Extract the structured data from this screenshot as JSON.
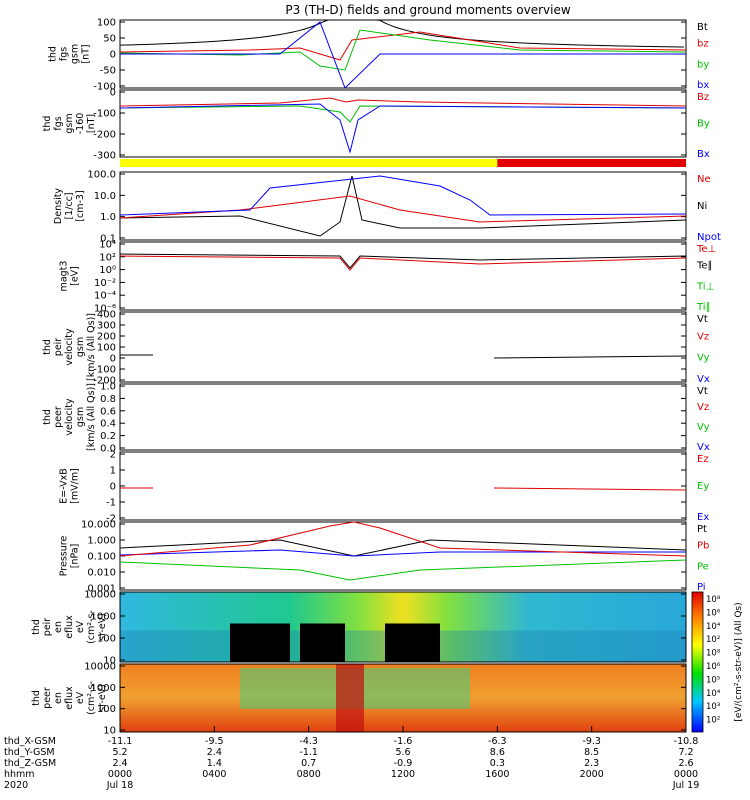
{
  "title": "P3 (TH-D) fields and ground moments overview",
  "colors": {
    "black": "#000000",
    "red": "#e00000",
    "green": "#00c000",
    "blue": "#0000ff",
    "yellow": "#ffff00"
  },
  "chart_data": {
    "type": "line",
    "title": "P3 (TH-D) fields and ground moments overview",
    "x_axis": {
      "label": "hhmm",
      "year": "2020",
      "start_date": "Jul 18",
      "end_date": "Jul 19",
      "ticks": [
        "0000",
        "0400",
        "0800",
        "1200",
        "1600",
        "2000",
        "0000"
      ],
      "rows": [
        {
          "label": "thd_X-GSM",
          "values": [
            "-11.1",
            "-9.5",
            "-4.3",
            "-1.6",
            "-6.3",
            "-9.3",
            "-10.8"
          ]
        },
        {
          "label": "thd_Y-GSM",
          "values": [
            "5.2",
            "2.4",
            "-1.1",
            "5.6",
            "8.6",
            "8.5",
            "7.2"
          ]
        },
        {
          "label": "thd_Z-GSM",
          "values": [
            "2.4",
            "1.4",
            "0.7",
            "-0.9",
            "0.3",
            "2.3",
            "2.6"
          ]
        }
      ]
    },
    "quality_bar": [
      {
        "color": "yellow",
        "start": "0000",
        "end": "1600"
      },
      {
        "color": "red",
        "start": "1600",
        "end": "2400"
      }
    ],
    "panels": [
      {
        "id": "fgs",
        "ylabel": [
          "thd",
          "fgs",
          "gsm",
          "[nT]"
        ],
        "yticks": [
          "100",
          "50",
          "0",
          "-50",
          "-100"
        ],
        "legend": [
          {
            "t": "Bt",
            "c": "black"
          },
          {
            "t": "bz",
            "c": "red"
          },
          {
            "t": "by",
            "c": "green"
          },
          {
            "t": "bx",
            "c": "blue"
          }
        ]
      },
      {
        "id": "fgs_dc",
        "ylabel": [
          "thd",
          "fgs",
          "gsm",
          "-160",
          "[nT]"
        ],
        "yticks": [
          "0",
          "-100",
          "-200",
          "-300"
        ],
        "legend": [
          {
            "t": "Bz",
            "c": "red"
          },
          {
            "t": "By",
            "c": "green"
          },
          {
            "t": "Bx",
            "c": "blue"
          }
        ]
      },
      {
        "id": "density",
        "ylabel": [
          "Density",
          "[1/cc]",
          "[cm-3]"
        ],
        "yticks": [
          "100.0",
          "10.0",
          "1.0",
          "0.1"
        ],
        "legend": [
          {
            "t": "Ne",
            "c": "red"
          },
          {
            "t": "Ni",
            "c": "black"
          },
          {
            "t": "Npot",
            "c": "blue"
          }
        ]
      },
      {
        "id": "temp",
        "ylabel": [
          "magt3",
          "[eV]"
        ],
        "yticks": [
          "10⁴",
          "10²",
          "10⁰",
          "10⁻²",
          "10⁻⁴",
          "10⁻⁶"
        ],
        "legend": [
          {
            "t": "Te⊥",
            "c": "red"
          },
          {
            "t": "Te∥",
            "c": "black"
          },
          {
            "t": "Ti⊥",
            "c": "green"
          },
          {
            "t": "Ti∥",
            "c": "green"
          }
        ]
      },
      {
        "id": "vi",
        "ylabel": [
          "thd",
          "peir",
          "velocity",
          "gsm",
          "[km/s (All Qs)]"
        ],
        "yticks": [
          "400",
          "300",
          "200",
          "100",
          "0",
          "-100",
          "-200"
        ],
        "legend": [
          {
            "t": "Vt",
            "c": "black"
          },
          {
            "t": "Vz",
            "c": "red"
          },
          {
            "t": "Vy",
            "c": "green"
          },
          {
            "t": "Vx",
            "c": "blue"
          }
        ]
      },
      {
        "id": "ve",
        "ylabel": [
          "thd",
          "peer",
          "velocity",
          "gsm",
          "[km/s (All Qs)]"
        ],
        "yticks": [
          "1.0",
          "0.8",
          "0.6",
          "0.4",
          "0.2",
          "0.0"
        ],
        "legend": [
          {
            "t": "Vt",
            "c": "black"
          },
          {
            "t": "Vz",
            "c": "red"
          },
          {
            "t": "Vy",
            "c": "green"
          },
          {
            "t": "Vx",
            "c": "blue"
          }
        ]
      },
      {
        "id": "efield",
        "ylabel": [
          "E=-VxB",
          "[mV/m]"
        ],
        "yticks": [
          "2",
          "1",
          "0",
          "-1",
          "-2"
        ],
        "legend": [
          {
            "t": "Ez",
            "c": "red"
          },
          {
            "t": "Ey",
            "c": "green"
          },
          {
            "t": "Ex",
            "c": "blue"
          }
        ]
      },
      {
        "id": "pressure",
        "ylabel": [
          "Pressure",
          "[nPa]"
        ],
        "yticks": [
          "10.000",
          "1.000",
          "0.100",
          "0.010",
          "0.001"
        ],
        "legend": [
          {
            "t": "Pt",
            "c": "black"
          },
          {
            "t": "Pb",
            "c": "red"
          },
          {
            "t": "Pe",
            "c": "green"
          },
          {
            "t": "Pi",
            "c": "blue"
          }
        ]
      },
      {
        "id": "ion_spec",
        "ylabel": [
          "thd",
          "peir",
          "en",
          "eflux",
          "eV",
          "(cm²-s-",
          "sr-eV)"
        ],
        "yticks": [
          "10000",
          "1000",
          "100",
          "10"
        ]
      },
      {
        "id": "ele_spec",
        "ylabel": [
          "thd",
          "peer",
          "en",
          "eflux",
          "eV",
          "(cm²-s-",
          "sr-eV)"
        ],
        "yticks": [
          "10000",
          "1000",
          "100",
          "10"
        ]
      }
    ],
    "colorbar": {
      "label": "[eV/(cm²-s-str-eV)] (All Qs)",
      "ticks": [
        "10⁸",
        "10⁶",
        "10⁴",
        "10²",
        "10⁸",
        "10⁶",
        "10⁵",
        "10⁴",
        "10³",
        "10²"
      ]
    }
  }
}
